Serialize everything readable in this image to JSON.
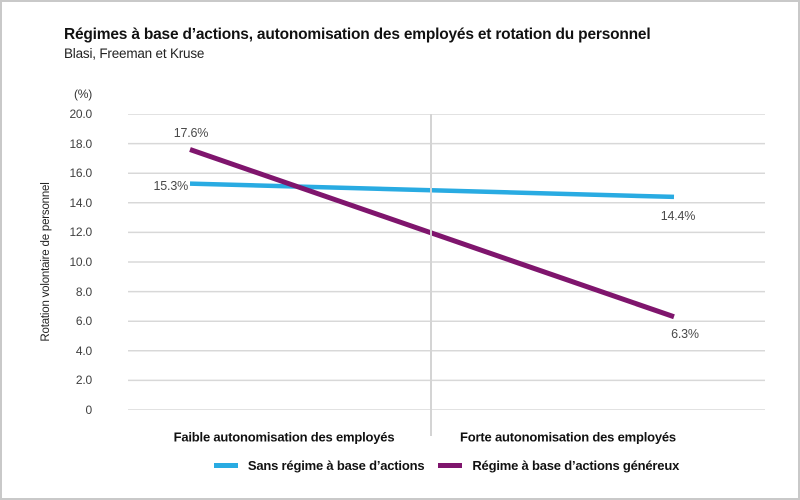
{
  "chart_data": {
    "type": "line",
    "title": "Régimes à base d’actions, autonomisation des employés et rotation du personnel",
    "subtitle": "Blasi, Freeman et Kruse",
    "unit_label": "(%)",
    "ylabel": "Rotation volontaire de personnel",
    "ylim": [
      0,
      20
    ],
    "ytick_labels": [
      "20.0",
      "18.0",
      "16.0",
      "14.0",
      "12.0",
      "10.0",
      "8.0",
      "6.0",
      "4.0",
      "2.0",
      "0"
    ],
    "categories": [
      "Faible autonomisation des employés",
      "Forte autonomisation des employés"
    ],
    "series": [
      {
        "name": "Sans régime à base d’actions",
        "color": "#29abe2",
        "values": [
          15.3,
          14.4
        ],
        "point_labels": [
          "15.3%",
          "14.4%"
        ]
      },
      {
        "name": "Régime à base d’actions généreux",
        "color": "#7f156d",
        "values": [
          17.6,
          6.3
        ],
        "point_labels": [
          "17.6%",
          "6.3%"
        ]
      }
    ],
    "grid": true,
    "gridline_color": "#d8d8d8",
    "category_divider": true,
    "legend_position": "bottom"
  }
}
